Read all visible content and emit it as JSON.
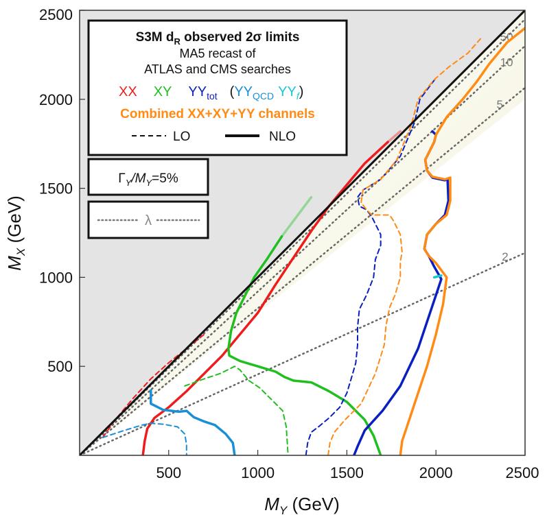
{
  "chart_data": {
    "type": "line",
    "title": "S3M d",
    "title_sub": "R",
    "title_rest": " observed 2σ limits",
    "subtitle_line1": "MA5 recast of",
    "subtitle_line2": "ATLAS and CMS searches",
    "xlabel": "M",
    "xlabel_sub": "Y",
    "xlabel_unit": " (GeV)",
    "ylabel": "M",
    "ylabel_sub": "X",
    "ylabel_unit": " (GeV)",
    "xlim": [
      0,
      2500
    ],
    "ylim": [
      0,
      2500
    ],
    "xticks": [
      "500",
      "1000",
      "1500",
      "2000",
      "2500"
    ],
    "yticks": [
      "500",
      "1000",
      "1500",
      "2000",
      "2500"
    ],
    "legend": {
      "xx": "XX",
      "xy": "XY",
      "yy_main": "YY",
      "yy_sub": "tot",
      "paren_open": "(",
      "yyqcd_main": "YY",
      "yyqcd_sub": "QCD",
      "yyf_main": "YY",
      "yyf_sub": "f",
      "paren_close": ")",
      "combined": "Combined XX+XY+YY channels",
      "lo": "LO",
      "nlo": "NLO",
      "width_label_a": "Γ",
      "width_label_b": "Y",
      "width_label_c": "/M",
      "width_label_d": "Y",
      "width_label_e": "=5%",
      "lambda": "λ"
    },
    "colors": {
      "xx": "#ee1c1c",
      "xy": "#1fbf1f",
      "yy": "#0a1fbf",
      "yyqcd": "#1a8fd6",
      "yyf": "#17c9cf",
      "combined": "#ff8a14",
      "excluded": "#e4e4e4"
    },
    "lambda_lines": [
      {
        "label": "2",
        "slope": 0.455,
        "label_x": 2370
      },
      {
        "label": "5",
        "slope": 0.826,
        "label_x": 2340
      },
      {
        "label": "10",
        "slope": 0.92,
        "label_x": 2360
      },
      {
        "label": "50",
        "slope": 0.98,
        "label_x": 2360
      }
    ],
    "series": [
      {
        "name": "XX NLO",
        "color": "xx",
        "dashed": false,
        "points": [
          [
            355,
            0
          ],
          [
            365,
            80
          ],
          [
            380,
            150
          ],
          [
            420,
            210
          ],
          [
            500,
            270
          ],
          [
            600,
            360
          ],
          [
            700,
            460
          ],
          [
            800,
            560
          ],
          [
            900,
            680
          ],
          [
            1000,
            800
          ],
          [
            1100,
            960
          ],
          [
            1200,
            1110
          ],
          [
            1300,
            1260
          ],
          [
            1400,
            1400
          ],
          [
            1500,
            1520
          ],
          [
            1600,
            1640
          ],
          [
            1730,
            1760
          ]
        ]
      },
      {
        "name": "XX LO",
        "color": "xx",
        "dashed": true,
        "points": [
          [
            130,
            100
          ],
          [
            200,
            200
          ],
          [
            300,
            320
          ],
          [
            400,
            430
          ],
          [
            500,
            520
          ],
          [
            600,
            600
          ],
          [
            700,
            680
          ]
        ]
      },
      {
        "name": "XY NLO",
        "color": "xy",
        "dashed": false,
        "points": [
          [
            1135,
            1230
          ],
          [
            1050,
            1100
          ],
          [
            980,
            1000
          ],
          [
            930,
            900
          ],
          [
            880,
            800
          ],
          [
            850,
            700
          ],
          [
            835,
            600
          ],
          [
            840,
            560
          ],
          [
            900,
            530
          ],
          [
            1000,
            500
          ],
          [
            1100,
            470
          ],
          [
            1150,
            440
          ],
          [
            1200,
            420
          ],
          [
            1300,
            410
          ],
          [
            1400,
            360
          ],
          [
            1500,
            300
          ],
          [
            1550,
            250
          ],
          [
            1600,
            200
          ],
          [
            1650,
            110
          ],
          [
            1690,
            0
          ]
        ]
      },
      {
        "name": "XY LO",
        "color": "xy",
        "dashed": true,
        "points": [
          [
            590,
            390
          ],
          [
            700,
            430
          ],
          [
            790,
            460
          ],
          [
            870,
            500
          ],
          [
            900,
            480
          ],
          [
            950,
            420
          ],
          [
            1010,
            380
          ],
          [
            1060,
            330
          ],
          [
            1100,
            290
          ],
          [
            1140,
            250
          ],
          [
            1160,
            160
          ],
          [
            1170,
            0
          ]
        ]
      },
      {
        "name": "YY tot NLO",
        "color": "yy",
        "dashed": false,
        "points": [
          [
            1540,
            0
          ],
          [
            1560,
            50
          ],
          [
            1600,
            140
          ],
          [
            1700,
            250
          ],
          [
            1800,
            390
          ],
          [
            1900,
            600
          ],
          [
            2000,
            900
          ],
          [
            2030,
            990
          ],
          [
            1990,
            1060
          ],
          [
            1960,
            1120
          ],
          [
            1935,
            1160
          ],
          [
            1950,
            1240
          ],
          [
            2000,
            1300
          ],
          [
            2050,
            1350
          ],
          [
            2070,
            1430
          ],
          [
            2065,
            1550
          ],
          [
            2050,
            1545
          ],
          [
            1980,
            1560
          ],
          [
            1950,
            1600
          ],
          [
            1940,
            1660
          ],
          [
            1960,
            1700
          ],
          [
            1990,
            1760
          ],
          [
            2000,
            1800
          ],
          [
            1980,
            1820
          ]
        ]
      },
      {
        "name": "YY tot LO",
        "color": "yy",
        "dashed": true,
        "points": [
          [
            1270,
            0
          ],
          [
            1280,
            70
          ],
          [
            1300,
            130
          ],
          [
            1340,
            160
          ],
          [
            1400,
            210
          ],
          [
            1460,
            270
          ],
          [
            1500,
            350
          ],
          [
            1530,
            450
          ],
          [
            1550,
            520
          ],
          [
            1560,
            620
          ],
          [
            1560,
            720
          ],
          [
            1570,
            820
          ],
          [
            1610,
            900
          ],
          [
            1650,
            1000
          ],
          [
            1660,
            1100
          ],
          [
            1690,
            1180
          ],
          [
            1690,
            1240
          ],
          [
            1640,
            1340
          ],
          [
            1610,
            1380
          ],
          [
            1570,
            1400
          ],
          [
            1560,
            1450
          ],
          [
            1590,
            1490
          ],
          [
            1690,
            1550
          ],
          [
            1800,
            1680
          ],
          [
            1880,
            1870
          ],
          [
            1910,
            2000
          ],
          [
            2000,
            2120
          ]
        ]
      },
      {
        "name": "YY QCD NLO",
        "color": "yyqcd",
        "dashed": false,
        "points": [
          [
            400,
            365
          ],
          [
            400,
            290
          ],
          [
            470,
            255
          ],
          [
            560,
            245
          ],
          [
            600,
            250
          ],
          [
            640,
            215
          ],
          [
            700,
            190
          ],
          [
            760,
            170
          ],
          [
            820,
            120
          ],
          [
            860,
            70
          ],
          [
            870,
            0
          ]
        ]
      },
      {
        "name": "YY QCD LO",
        "color": "yyqcd",
        "dashed": true,
        "points": [
          [
            130,
            100
          ],
          [
            250,
            140
          ],
          [
            350,
            170
          ],
          [
            400,
            180
          ],
          [
            470,
            175
          ],
          [
            550,
            160
          ],
          [
            590,
            120
          ],
          [
            600,
            60
          ],
          [
            600,
            0
          ]
        ]
      },
      {
        "name": "YY f NLO",
        "color": "yyf",
        "dashed": false,
        "points": [
          [
            1990,
            1000
          ],
          [
            2030,
            1010
          ]
        ]
      },
      {
        "name": "Combined NLO",
        "color": "combined",
        "dashed": false,
        "points": [
          [
            1800,
            0
          ],
          [
            1810,
            80
          ],
          [
            1850,
            200
          ],
          [
            1900,
            350
          ],
          [
            1950,
            500
          ],
          [
            2000,
            680
          ],
          [
            2040,
            850
          ],
          [
            2060,
            1000
          ],
          [
            2000,
            1080
          ],
          [
            1960,
            1120
          ],
          [
            1935,
            1160
          ],
          [
            1950,
            1240
          ],
          [
            2000,
            1300
          ],
          [
            2060,
            1350
          ],
          [
            2080,
            1430
          ],
          [
            2080,
            1560
          ],
          [
            2050,
            1550
          ],
          [
            1980,
            1565
          ],
          [
            1950,
            1600
          ],
          [
            1940,
            1660
          ],
          [
            1960,
            1700
          ],
          [
            1990,
            1760
          ],
          [
            2000,
            1800
          ],
          [
            2060,
            1900
          ],
          [
            2150,
            2000
          ],
          [
            2230,
            2100
          ],
          [
            2300,
            2200
          ],
          [
            2400,
            2320
          ],
          [
            2500,
            2400
          ]
        ]
      },
      {
        "name": "Combined LO",
        "color": "combined",
        "dashed": true,
        "points": [
          [
            1395,
            0
          ],
          [
            1405,
            70
          ],
          [
            1430,
            130
          ],
          [
            1490,
            200
          ],
          [
            1580,
            290
          ],
          [
            1660,
            460
          ],
          [
            1710,
            620
          ],
          [
            1720,
            730
          ],
          [
            1740,
            830
          ],
          [
            1770,
            900
          ],
          [
            1800,
            1000
          ],
          [
            1800,
            1090
          ],
          [
            1810,
            1140
          ],
          [
            1800,
            1240
          ],
          [
            1760,
            1320
          ],
          [
            1740,
            1350
          ],
          [
            1640,
            1350
          ],
          [
            1610,
            1380
          ],
          [
            1580,
            1420
          ],
          [
            1590,
            1490
          ],
          [
            1690,
            1550
          ],
          [
            1780,
            1660
          ],
          [
            1860,
            1850
          ],
          [
            1900,
            2000
          ],
          [
            1990,
            2110
          ],
          [
            2070,
            2180
          ],
          [
            2180,
            2260
          ],
          [
            2250,
            2340
          ]
        ]
      },
      {
        "name": "XX NLO faint",
        "color": "xx",
        "dashed": false,
        "faint": true,
        "points": [
          [
            1730,
            1760
          ],
          [
            1800,
            1820
          ]
        ]
      },
      {
        "name": "XY NLO faint",
        "color": "xy",
        "dashed": false,
        "faint": true,
        "points": [
          [
            1135,
            1230
          ],
          [
            1300,
            1450
          ]
        ]
      }
    ]
  }
}
